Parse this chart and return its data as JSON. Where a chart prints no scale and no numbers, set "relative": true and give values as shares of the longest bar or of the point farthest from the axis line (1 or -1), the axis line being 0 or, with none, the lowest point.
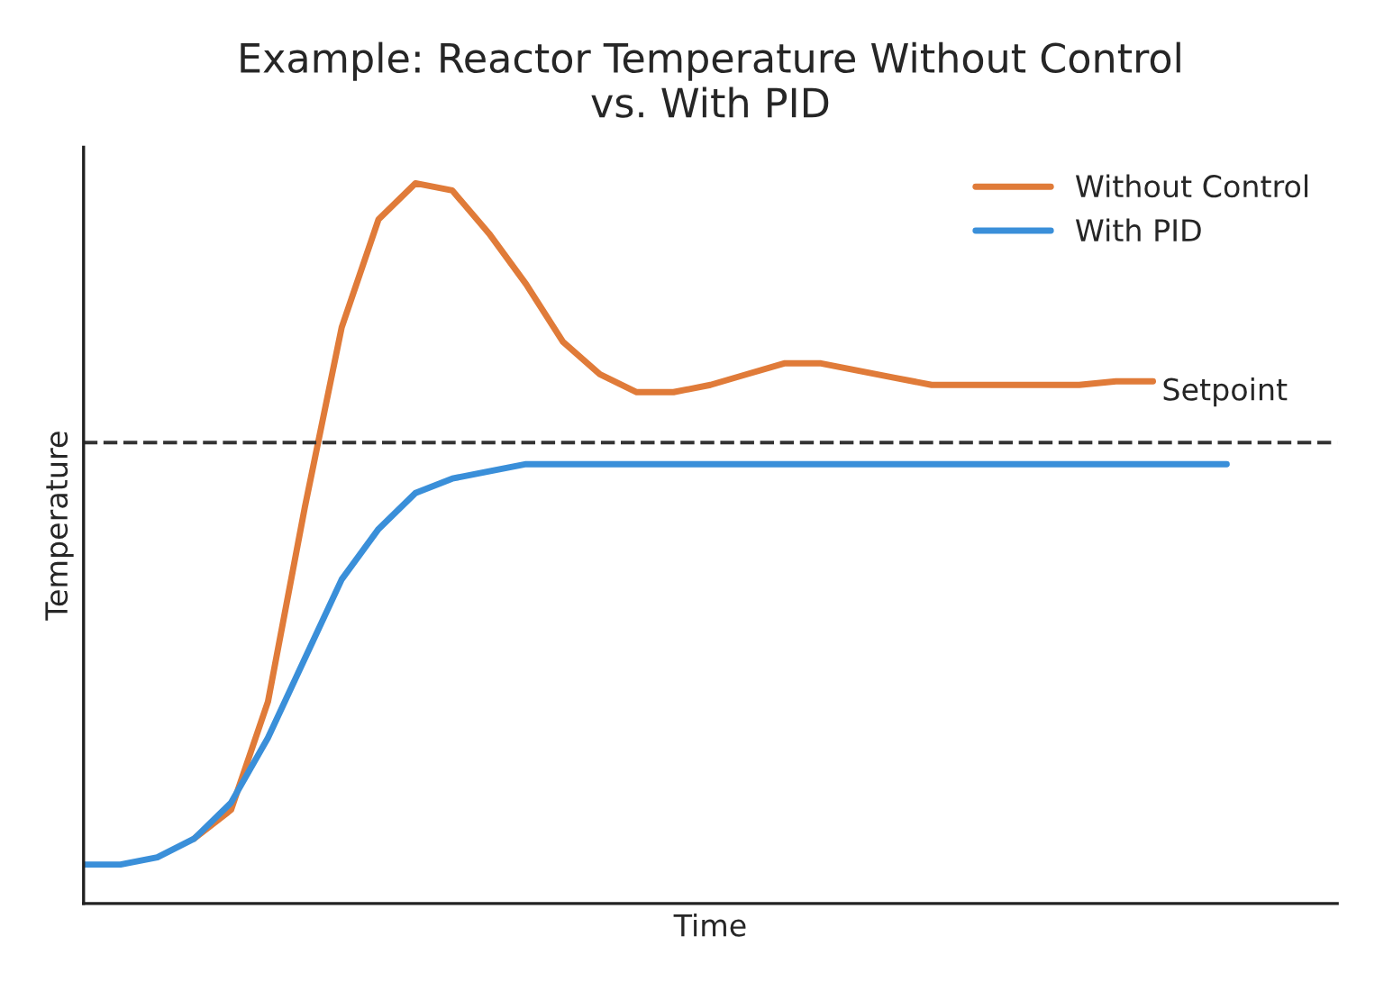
{
  "chart_data": {
    "type": "line",
    "title": "Example: Reactor Temperature Without Control\nvs. With PID",
    "xlabel": "Time",
    "ylabel": "Temperature",
    "relative": true,
    "categories": [
      null,
      null,
      null,
      null,
      null,
      null,
      null,
      null,
      null,
      null,
      null,
      null,
      null,
      null,
      null,
      null,
      null,
      null,
      null,
      null,
      null,
      null,
      null,
      null,
      null,
      null,
      null,
      null,
      null,
      null,
      null,
      null,
      null,
      null,
      null
    ],
    "series": [
      {
        "name": "Without Control",
        "color": "#e07b39",
        "values": [
          null,
          null,
          null,
          0.09,
          0.13,
          0.28,
          0.55,
          0.8,
          0.95,
          1.0,
          0.99,
          0.93,
          0.86,
          0.78,
          0.735,
          0.71,
          0.71,
          0.72,
          0.735,
          0.75,
          0.75,
          0.74,
          0.73,
          0.72,
          0.72,
          0.72,
          0.72,
          0.72,
          0.725,
          0.725,
          null,
          null,
          null,
          null,
          null
        ]
      },
      {
        "name": "With PID",
        "color": "#3a8fd9",
        "values": [
          0.054,
          0.054,
          0.064,
          0.09,
          0.14,
          0.23,
          0.34,
          0.45,
          0.52,
          0.57,
          0.59,
          0.6,
          0.61,
          0.61,
          0.61,
          0.61,
          0.61,
          0.61,
          0.61,
          0.61,
          0.61,
          0.61,
          0.61,
          0.61,
          0.61,
          0.61,
          0.61,
          0.61,
          0.61,
          0.61,
          0.61,
          0.61,
          null,
          null,
          null
        ]
      }
    ],
    "ref_lines": [
      {
        "axis": "y",
        "value": 0.64,
        "label": "Setpoint",
        "color": "#333333",
        "line_style": "dashed"
      }
    ],
    "legend": "top right",
    "marker": "none",
    "line_style": "solid"
  }
}
